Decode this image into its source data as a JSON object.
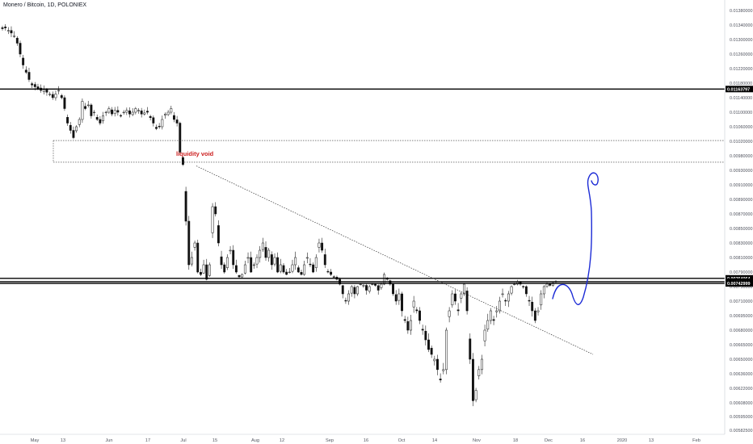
{
  "chart_data": {
    "type": "candlestick",
    "title": "Monero / Bitcoin, 1D, POLONIEX",
    "x_tick_labels": [
      "May",
      "13",
      "Jun",
      "17",
      "Jul",
      "15",
      "Aug",
      "12",
      "Sep",
      "16",
      "Oct",
      "14",
      "Nov",
      "18",
      "Dec",
      "16",
      "2020",
      "13",
      "Feb"
    ],
    "y_tick_labels": [
      "0.01380000",
      "0.01340000",
      "0.01300000",
      "0.01260000",
      "0.01220000",
      "0.01180000",
      "0.01140000",
      "0.01100000",
      "0.01060000",
      "0.01020000",
      "0.00980000",
      "0.00930000",
      "0.00910000",
      "0.00890000",
      "0.00870000",
      "0.00850000",
      "0.00830000",
      "0.00810000",
      "0.00790000",
      "0.00730000",
      "0.00710000",
      "0.00695000",
      "0.00680000",
      "0.00665000",
      "0.00650000",
      "0.00636000",
      "0.00622000",
      "0.00608000",
      "0.00595000",
      "0.00582500"
    ],
    "ylim": [
      0.0057,
      0.0139
    ],
    "horizontal_levels": [
      {
        "value": 0.01163797,
        "label": "0.01163797"
      },
      {
        "value": 0.00764064,
        "label": "0.00764064"
      },
      {
        "value": 0.00750113,
        "label": "0.00750113"
      },
      {
        "value": 0.00742999,
        "label": "0.00742999"
      }
    ],
    "liquidity_void_zone": {
      "top": 0.01022,
      "bottom": 0.00958
    },
    "annotations": [
      {
        "text": "liquidity void",
        "color": "#cc1f1f"
      }
    ],
    "trendline": {
      "start": {
        "x": "Jul 10",
        "y": 0.00945
      },
      "end": {
        "x": "Dec 28",
        "y": 0.00655
      }
    },
    "candles_approx_close": [
      0.0133,
      0.01332,
      0.01325,
      0.01318,
      0.0131,
      0.0129,
      0.0126,
      0.0123,
      0.0121,
      0.0119,
      0.01175,
      0.0117,
      0.01165,
      0.0116,
      0.01162,
      0.01155,
      0.0115,
      0.0114,
      0.0115,
      0.0116,
      0.0114,
      0.0111,
      0.0107,
      0.0105,
      0.0103,
      0.0106,
      0.0108,
      0.0113,
      0.0111,
      0.0112,
      0.0109,
      0.011,
      0.0108,
      0.0107,
      0.0109,
      0.011,
      0.0111,
      0.01095,
      0.01105,
      0.011,
      0.0109,
      0.011,
      0.01105,
      0.01095,
      0.011,
      0.0111,
      0.01105,
      0.01095,
      0.01098,
      0.011,
      0.01085,
      0.0107,
      0.01055,
      0.0106,
      0.0108,
      0.01095,
      0.011,
      0.0111,
      0.0108,
      0.0107,
      0.0099,
      0.0095,
      0.0086,
      0.008,
      0.0081,
      0.0083,
      0.0079,
      0.0078,
      0.008,
      0.0076,
      0.008,
      0.0088,
      0.0087,
      0.0083,
      0.008,
      0.0079,
      0.0081,
      0.0082,
      0.008,
      0.0079,
      0.0077,
      0.0078,
      0.008,
      0.0081,
      0.0079,
      0.008,
      0.0081,
      0.0082,
      0.0083,
      0.0081,
      0.0082,
      0.008,
      0.0081,
      0.0079,
      0.008,
      0.0079,
      0.0078,
      0.0079,
      0.008,
      0.0081,
      0.0079,
      0.0078,
      0.008,
      0.0081,
      0.008,
      0.0079,
      0.0081,
      0.0083,
      0.0082,
      0.008,
      0.0079,
      0.0078,
      0.0077,
      0.0076,
      0.0074,
      0.0072,
      0.0071,
      0.0072,
      0.0073,
      0.0072,
      0.0073,
      0.0074,
      0.00735,
      0.00725,
      0.0073,
      0.0074,
      0.00735,
      0.00725,
      0.0074,
      0.0078,
      0.0076,
      0.0074,
      0.0072,
      0.0071,
      0.0072,
      0.007,
      0.0069,
      0.0068,
      0.0069,
      0.0071,
      0.007,
      0.0069,
      0.0068,
      0.0067,
      0.0066,
      0.00655,
      0.0065,
      0.0064,
      0.0063,
      0.0064,
      0.0068,
      0.007,
      0.0072,
      0.0071,
      0.007,
      0.0072,
      0.0074,
      0.007,
      0.0065,
      0.0061,
      0.0062,
      0.0064,
      0.0065,
      0.0068,
      0.0069,
      0.007,
      0.0069,
      0.007,
      0.0071,
      0.0072,
      0.0071,
      0.0072,
      0.0073,
      0.0074,
      0.0075,
      0.0074,
      0.0073,
      0.0072,
      0.0071,
      0.007,
      0.0069,
      0.007,
      0.0072,
      0.0073,
      0.0074,
      0.00735,
      0.00745,
      0.0075
    ]
  }
}
